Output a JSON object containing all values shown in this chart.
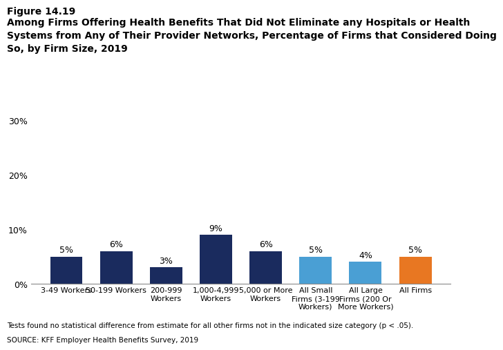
{
  "categories": [
    "3-49 Workers",
    "50-199 Workers",
    "200-999\nWorkers",
    "1,000-4,999\nWorkers",
    "5,000 or More\nWorkers",
    "All Small\nFirms (3-199\nWorkers)",
    "All Large\nFirms (200 Or\nMore Workers)",
    "All Firms"
  ],
  "values": [
    5,
    6,
    3,
    9,
    6,
    5,
    4,
    5
  ],
  "bar_colors": [
    "#1a2b5e",
    "#1a2b5e",
    "#1a2b5e",
    "#1a2b5e",
    "#1a2b5e",
    "#4a9fd4",
    "#4a9fd4",
    "#e87722"
  ],
  "labels": [
    "5%",
    "6%",
    "3%",
    "9%",
    "6%",
    "5%",
    "4%",
    "5%"
  ],
  "title_line1": "Figure 14.19",
  "title_line2": "Among Firms Offering Health Benefits That Did Not Eliminate any Hospitals or Health\nSystems from Any of Their Provider Networks, Percentage of Firms that Considered Doing\nSo, by Firm Size, 2019",
  "ylim": [
    0,
    30
  ],
  "yticks": [
    0,
    10,
    20,
    30
  ],
  "ytick_labels": [
    "0%",
    "10%",
    "20%",
    "30%"
  ],
  "footnote": "Tests found no statistical difference from estimate for all other firms not in the indicated size category (p < .05).",
  "source": "SOURCE: KFF Employer Health Benefits Survey, 2019",
  "background_color": "#ffffff"
}
